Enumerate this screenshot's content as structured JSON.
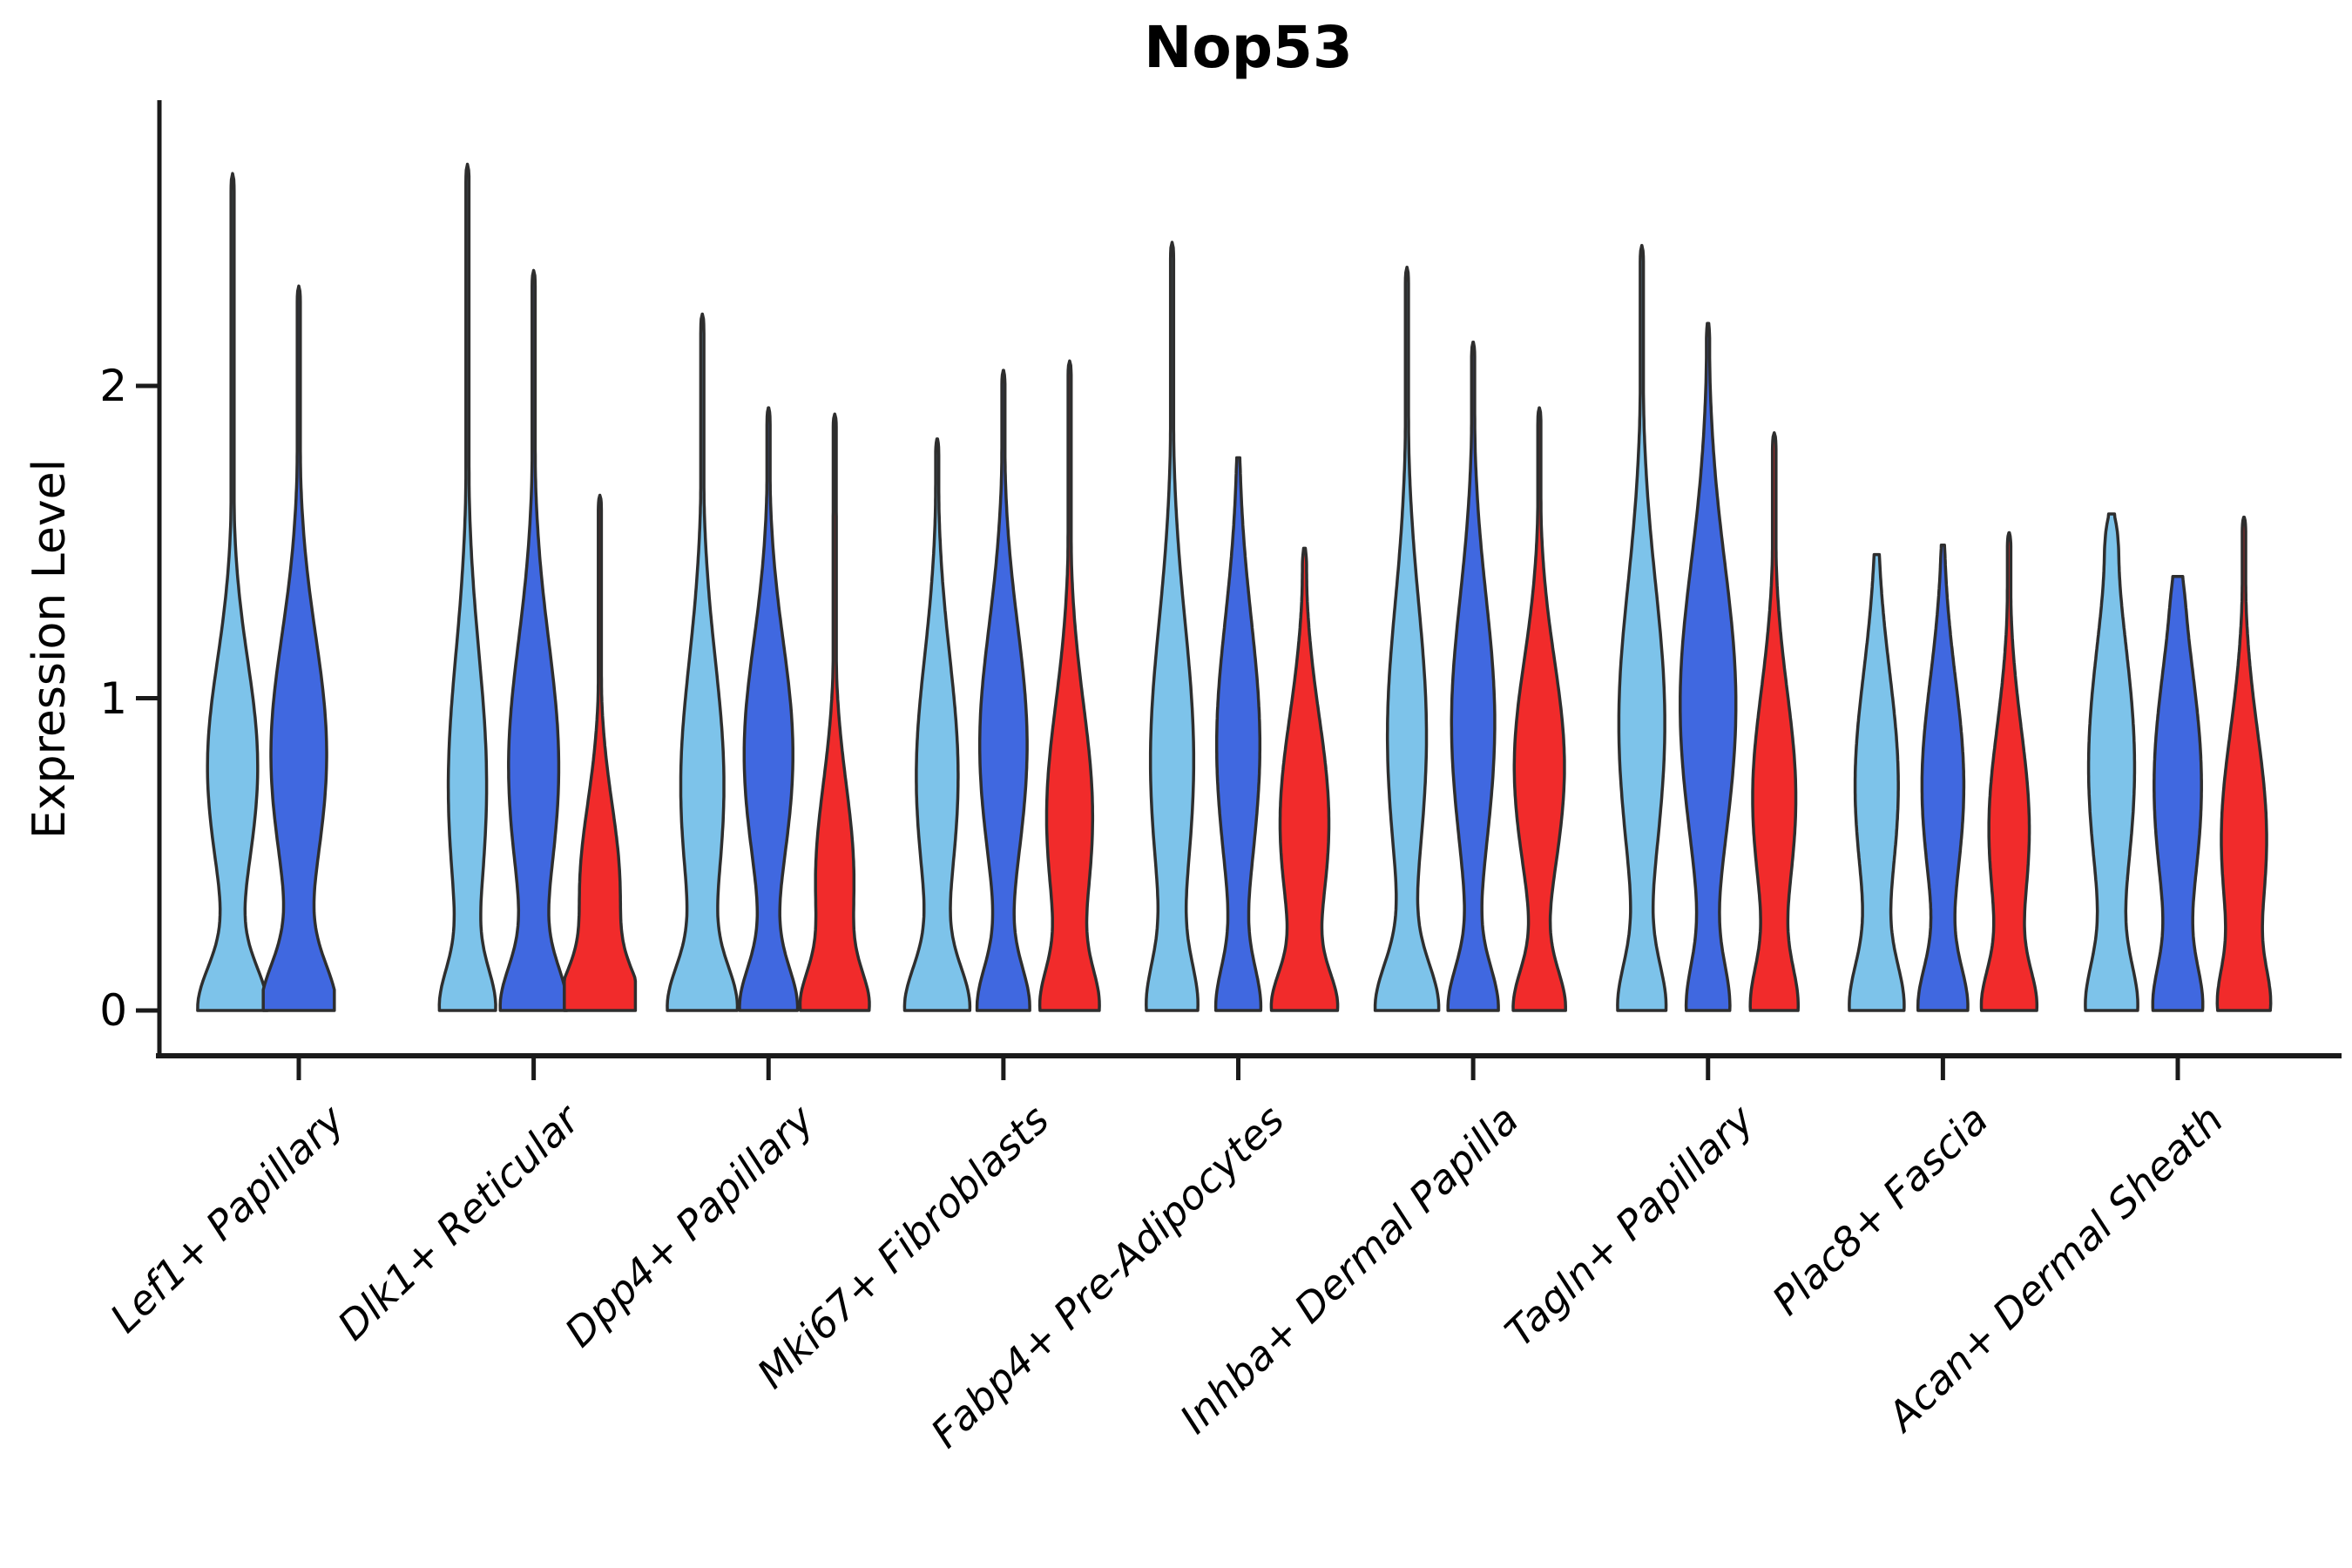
{
  "figure": {
    "title": "Nop53",
    "ylabel": "Expression Level"
  },
  "chart_data": {
    "type": "violin",
    "title": "Nop53",
    "xlabel": "",
    "ylabel": "Expression Level",
    "yticks": [
      0,
      1,
      2
    ],
    "ylim": [
      0,
      2.92
    ],
    "grid": false,
    "legend": "none",
    "x_label_rotation_deg": 44,
    "colors": {
      "light_blue": "#7DC3EA",
      "dark_blue": "#4068E0",
      "red": "#F12B2B",
      "outline": "#2E2E2E",
      "axis": "#1A1A1A"
    },
    "groups": [
      {
        "label": "Lef1+ Papillary",
        "violins": [
          {
            "split": "light_blue",
            "max": 2.68,
            "profile": {
              "mode": 0.78,
              "body": 0.72,
              "bodySigma": 0.34,
              "base": 0.95,
              "baseSigma": 0.14,
              "tip": 0.045,
              "cap": 0.05
            }
          },
          {
            "split": "dark_blue",
            "max": 2.32,
            "profile": {
              "mode": 0.82,
              "body": 0.8,
              "bodySigma": 0.38,
              "base": 1.0,
              "baseSigma": 0.15,
              "tip": 0.045,
              "cap": 0.05
            }
          }
        ]
      },
      {
        "label": "Dlk1+ Reticular",
        "violins": [
          {
            "split": "light_blue",
            "max": 2.71,
            "profile": {
              "mode": 0.72,
              "body": 0.55,
              "bodySigma": 0.42,
              "base": 0.68,
              "baseSigma": 0.13,
              "tip": 0.045,
              "cap": 0.05
            }
          },
          {
            "split": "dark_blue",
            "max": 2.37,
            "profile": {
              "mode": 0.78,
              "body": 0.72,
              "bodySigma": 0.4,
              "base": 0.85,
              "baseSigma": 0.14,
              "tip": 0.045,
              "cap": 0.05
            }
          },
          {
            "split": "red",
            "max": 1.65,
            "profile": {
              "mode": 0.38,
              "body": 0.58,
              "bodySigma": 0.28,
              "base": 0.95,
              "baseSigma": 0.12,
              "tip": 0.045,
              "cap": 0.05
            }
          }
        ]
      },
      {
        "label": "Dpp4+ Papillary",
        "violins": [
          {
            "split": "light_blue",
            "max": 2.23,
            "profile": {
              "mode": 0.72,
              "body": 0.62,
              "bodySigma": 0.4,
              "base": 0.88,
              "baseSigma": 0.14,
              "tip": 0.045,
              "cap": 0.05
            }
          },
          {
            "split": "dark_blue",
            "max": 1.93,
            "profile": {
              "mode": 0.82,
              "body": 0.7,
              "bodySigma": 0.36,
              "base": 0.78,
              "baseSigma": 0.14,
              "tip": 0.045,
              "cap": 0.05
            }
          },
          {
            "split": "red",
            "max": 1.91,
            "profile": {
              "mode": 0.42,
              "body": 0.55,
              "bodySigma": 0.3,
              "base": 0.78,
              "baseSigma": 0.12,
              "tip": 0.045,
              "cap": 0.05
            }
          }
        ]
      },
      {
        "label": "Mki67+ Fibroblasts",
        "violins": [
          {
            "split": "light_blue",
            "max": 1.83,
            "profile": {
              "mode": 0.75,
              "body": 0.6,
              "bodySigma": 0.38,
              "base": 0.85,
              "baseSigma": 0.14,
              "tip": 0.045,
              "cap": 0.05
            }
          },
          {
            "split": "dark_blue",
            "max": 2.05,
            "profile": {
              "mode": 0.85,
              "body": 0.68,
              "bodySigma": 0.38,
              "base": 0.7,
              "baseSigma": 0.14,
              "tip": 0.045,
              "cap": 0.05
            }
          },
          {
            "split": "red",
            "max": 2.08,
            "profile": {
              "mode": 0.62,
              "body": 0.66,
              "bodySigma": 0.36,
              "base": 0.7,
              "baseSigma": 0.13,
              "tip": 0.045,
              "cap": 0.05
            }
          }
        ]
      },
      {
        "label": "Fabp4+ Pre-Adipocytes",
        "violins": [
          {
            "split": "light_blue",
            "max": 2.46,
            "profile": {
              "mode": 0.8,
              "body": 0.62,
              "bodySigma": 0.44,
              "base": 0.62,
              "baseSigma": 0.15,
              "tip": 0.045,
              "cap": 0.05
            }
          },
          {
            "split": "dark_blue",
            "max": 1.77,
            "profile": {
              "mode": 0.85,
              "body": 0.62,
              "bodySigma": 0.4,
              "base": 0.58,
              "baseSigma": 0.14,
              "tip": 0.045,
              "cap": 0.05
            }
          },
          {
            "split": "red",
            "max": 1.48,
            "profile": {
              "mode": 0.6,
              "body": 0.7,
              "bodySigma": 0.34,
              "base": 0.8,
              "baseSigma": 0.12,
              "tip": 0.06,
              "cap": 0.06
            }
          }
        ]
      },
      {
        "label": "Inhba+ Dermal Papilla",
        "violins": [
          {
            "split": "light_blue",
            "max": 2.38,
            "profile": {
              "mode": 0.88,
              "body": 0.56,
              "bodySigma": 0.42,
              "base": 0.85,
              "baseSigma": 0.15,
              "tip": 0.045,
              "cap": 0.05
            }
          },
          {
            "split": "dark_blue",
            "max": 2.14,
            "profile": {
              "mode": 0.92,
              "body": 0.62,
              "bodySigma": 0.4,
              "base": 0.68,
              "baseSigma": 0.14,
              "tip": 0.045,
              "cap": 0.05
            }
          },
          {
            "split": "red",
            "max": 1.93,
            "profile": {
              "mode": 0.78,
              "body": 0.72,
              "bodySigma": 0.34,
              "base": 0.7,
              "baseSigma": 0.13,
              "tip": 0.045,
              "cap": 0.05
            }
          }
        ]
      },
      {
        "label": "Tagln+ Papillary",
        "violins": [
          {
            "split": "light_blue",
            "max": 2.45,
            "profile": {
              "mode": 0.92,
              "body": 0.66,
              "bodySigma": 0.44,
              "base": 0.62,
              "baseSigma": 0.15,
              "tip": 0.045,
              "cap": 0.05
            }
          },
          {
            "split": "dark_blue",
            "max": 2.2,
            "profile": {
              "mode": 0.98,
              "body": 0.8,
              "bodySigma": 0.45,
              "base": 0.55,
              "baseSigma": 0.15,
              "tip": 0.045,
              "cap": 0.05
            }
          },
          {
            "split": "red",
            "max": 1.85,
            "profile": {
              "mode": 0.68,
              "body": 0.62,
              "bodySigma": 0.34,
              "base": 0.6,
              "baseSigma": 0.14,
              "tip": 0.05,
              "cap": 0.05
            }
          }
        ]
      },
      {
        "label": "Plac8+ Fascia",
        "violins": [
          {
            "split": "light_blue",
            "max": 1.46,
            "profile": {
              "mode": 0.72,
              "body": 0.62,
              "bodySigma": 0.36,
              "base": 0.7,
              "baseSigma": 0.15,
              "tip": 0.05,
              "cap": 0.05
            }
          },
          {
            "split": "dark_blue",
            "max": 1.49,
            "profile": {
              "mode": 0.72,
              "body": 0.6,
              "bodySigma": 0.34,
              "base": 0.65,
              "baseSigma": 0.14,
              "tip": 0.05,
              "cap": 0.05
            }
          },
          {
            "split": "red",
            "max": 1.53,
            "profile": {
              "mode": 0.58,
              "body": 0.58,
              "bodySigma": 0.32,
              "base": 0.68,
              "baseSigma": 0.13,
              "tip": 0.05,
              "cap": 0.05
            }
          }
        ]
      },
      {
        "label": "Acan+ Dermal Sheath",
        "violins": [
          {
            "split": "light_blue",
            "max": 1.59,
            "profile": {
              "mode": 0.78,
              "body": 0.66,
              "bodySigma": 0.4,
              "base": 0.65,
              "baseSigma": 0.15,
              "tip": 0.2,
              "cap": 0.14
            }
          },
          {
            "split": "dark_blue",
            "max": 1.39,
            "profile": {
              "mode": 0.72,
              "body": 0.68,
              "bodySigma": 0.38,
              "base": 0.6,
              "baseSigma": 0.14,
              "tip": 0.2,
              "cap": 0.14
            }
          },
          {
            "split": "red",
            "max": 1.58,
            "profile": {
              "mode": 0.55,
              "body": 0.65,
              "bodySigma": 0.34,
              "base": 0.58,
              "baseSigma": 0.13,
              "tip": 0.05,
              "cap": 0.05
            }
          }
        ]
      }
    ]
  }
}
